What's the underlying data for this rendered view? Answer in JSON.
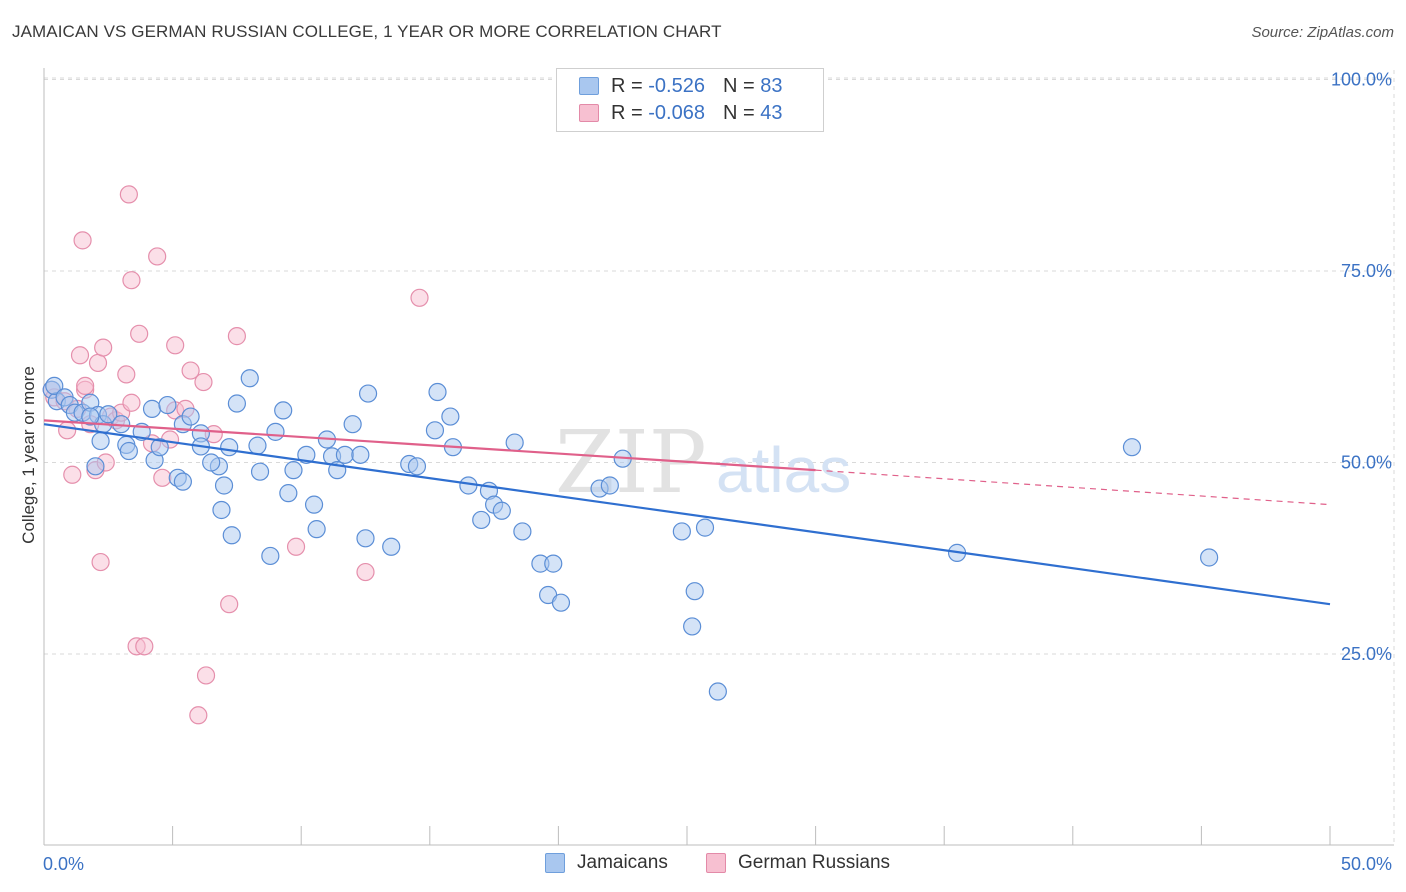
{
  "title": "JAMAICAN VS GERMAN RUSSIAN COLLEGE, 1 YEAR OR MORE CORRELATION CHART",
  "source": "Source: ZipAtlas.com",
  "watermark": {
    "zip": "ZIP",
    "atlas": "atlas"
  },
  "legend": {
    "rows": [
      {
        "r_label": "R =",
        "r_value": "-0.526",
        "n_label": "N =",
        "n_value": "83",
        "color": "#a9c7ef",
        "border": "#6f9fdc"
      },
      {
        "r_label": "R =",
        "r_value": "-0.068",
        "n_label": "N =",
        "n_value": "43",
        "color": "#f7c0d1",
        "border": "#e38aa8"
      }
    ]
  },
  "bottom_legend": {
    "jamaicans": "Jamaicans",
    "german_russians": "German Russians"
  },
  "colors": {
    "jamaican_fill": "#a9c7ef",
    "jamaican_stroke": "#5b8ed6",
    "jamaican_line": "#2f6fd0",
    "german_fill": "#f7c0d1",
    "german_stroke": "#e58fac",
    "german_line": "#e0608a",
    "grid": "#d9d9d9",
    "tick_text": "#3b72c4"
  },
  "chart_data": {
    "type": "scatter",
    "title": "JAMAICAN VS GERMAN RUSSIAN COLLEGE, 1 YEAR OR MORE CORRELATION CHART",
    "xlabel": "",
    "ylabel": "College, 1 year or more",
    "xlim": [
      0,
      50
    ],
    "ylim": [
      0,
      102
    ],
    "x_tick_labels": [
      {
        "value": 0,
        "label": "0.0%"
      },
      {
        "value": 50,
        "label": "50.0%"
      }
    ],
    "y_tick_labels": [
      {
        "value": 100,
        "label": "100.0%"
      },
      {
        "value": 75,
        "label": "75.0%"
      },
      {
        "value": 50,
        "label": "50.0%"
      },
      {
        "value": 25,
        "label": "25.0%"
      }
    ],
    "grid": true,
    "series": [
      {
        "name": "Jamaicans",
        "R": -0.526,
        "N": 83,
        "trend": {
          "x0": 0,
          "y0": 55.0,
          "x1": 50,
          "y1": 31.5
        },
        "points": [
          [
            0.3,
            59.5
          ],
          [
            0.5,
            58.0
          ],
          [
            0.4,
            60.0
          ],
          [
            0.8,
            58.5
          ],
          [
            1.0,
            57.5
          ],
          [
            1.2,
            56.5
          ],
          [
            1.5,
            56.5
          ],
          [
            1.8,
            57.8
          ],
          [
            2.1,
            56.2
          ],
          [
            2.3,
            55.0
          ],
          [
            2.5,
            56.3
          ],
          [
            1.8,
            56.0
          ],
          [
            3.0,
            55.0
          ],
          [
            3.2,
            52.3
          ],
          [
            4.2,
            57.0
          ],
          [
            4.8,
            57.5
          ],
          [
            5.4,
            55.0
          ],
          [
            5.7,
            56.0
          ],
          [
            6.1,
            53.8
          ],
          [
            2.2,
            52.8
          ],
          [
            3.3,
            51.5
          ],
          [
            4.3,
            50.3
          ],
          [
            5.2,
            48.0
          ],
          [
            5.4,
            47.5
          ],
          [
            6.1,
            52.1
          ],
          [
            6.8,
            49.5
          ],
          [
            7.2,
            52.0
          ],
          [
            7.5,
            57.7
          ],
          [
            8.3,
            52.2
          ],
          [
            9.0,
            54.0
          ],
          [
            7.0,
            47.0
          ],
          [
            6.9,
            43.8
          ],
          [
            7.3,
            40.5
          ],
          [
            8.4,
            48.8
          ],
          [
            8.8,
            37.8
          ],
          [
            9.3,
            56.8
          ],
          [
            9.5,
            46.0
          ],
          [
            9.7,
            49.0
          ],
          [
            10.2,
            51.0
          ],
          [
            10.5,
            44.5
          ],
          [
            10.6,
            41.3
          ],
          [
            11.0,
            53.0
          ],
          [
            11.2,
            50.8
          ],
          [
            11.4,
            49.0
          ],
          [
            11.7,
            51.0
          ],
          [
            12.3,
            51.0
          ],
          [
            12.5,
            40.1
          ],
          [
            12.6,
            59.0
          ],
          [
            13.5,
            39.0
          ],
          [
            14.2,
            49.8
          ],
          [
            14.5,
            49.5
          ],
          [
            15.3,
            59.2
          ],
          [
            15.8,
            56.0
          ],
          [
            15.2,
            54.2
          ],
          [
            15.9,
            52.0
          ],
          [
            17.0,
            42.5
          ],
          [
            17.3,
            46.3
          ],
          [
            17.5,
            44.5
          ],
          [
            17.8,
            43.7
          ],
          [
            18.6,
            41.0
          ],
          [
            19.3,
            36.8
          ],
          [
            19.6,
            32.7
          ],
          [
            19.8,
            36.8
          ],
          [
            18.3,
            52.6
          ],
          [
            20.1,
            31.7
          ],
          [
            21.6,
            46.6
          ],
          [
            22.5,
            50.5
          ],
          [
            24.8,
            41.0
          ],
          [
            25.2,
            28.6
          ],
          [
            25.3,
            33.2
          ],
          [
            25.7,
            41.5
          ],
          [
            26.2,
            20.1
          ],
          [
            35.5,
            38.2
          ],
          [
            42.3,
            52.0
          ],
          [
            45.3,
            37.6
          ],
          [
            2.0,
            49.5
          ],
          [
            4.5,
            52.0
          ],
          [
            6.5,
            50.0
          ],
          [
            8.0,
            61.0
          ],
          [
            12.0,
            55.0
          ],
          [
            16.5,
            47.0
          ],
          [
            22.0,
            47.0
          ],
          [
            3.8,
            54.0
          ]
        ]
      },
      {
        "name": "German Russians",
        "R": -0.068,
        "N": 43,
        "trend": {
          "x0": 0,
          "y0": 55.5,
          "x1": 30,
          "y1": 49.0
        },
        "trend_dashed": {
          "x0": 30,
          "y0": 49.0,
          "x1": 50,
          "y1": 44.5
        },
        "points": [
          [
            0.3,
            59.5
          ],
          [
            0.4,
            58.5
          ],
          [
            0.8,
            58.0
          ],
          [
            0.9,
            54.2
          ],
          [
            1.1,
            48.4
          ],
          [
            1.3,
            57.0
          ],
          [
            1.6,
            59.5
          ],
          [
            1.8,
            55.0
          ],
          [
            2.0,
            49.0
          ],
          [
            2.2,
            37.0
          ],
          [
            2.4,
            50.0
          ],
          [
            2.6,
            56.0
          ],
          [
            2.8,
            55.5
          ],
          [
            3.0,
            56.5
          ],
          [
            3.2,
            61.5
          ],
          [
            3.4,
            57.8
          ],
          [
            3.6,
            26.0
          ],
          [
            3.9,
            26.0
          ],
          [
            4.2,
            52.5
          ],
          [
            4.6,
            48.0
          ],
          [
            4.9,
            53.0
          ],
          [
            5.1,
            56.8
          ],
          [
            5.5,
            57.0
          ],
          [
            5.7,
            62.0
          ],
          [
            6.0,
            17.0
          ],
          [
            6.3,
            22.2
          ],
          [
            6.6,
            53.7
          ],
          [
            7.2,
            31.5
          ],
          [
            7.5,
            66.5
          ],
          [
            9.8,
            39.0
          ],
          [
            12.5,
            35.7
          ],
          [
            14.6,
            71.5
          ],
          [
            1.4,
            64.0
          ],
          [
            2.1,
            63.0
          ],
          [
            2.3,
            65.0
          ],
          [
            1.6,
            60.0
          ],
          [
            1.5,
            79.0
          ],
          [
            3.3,
            85.0
          ],
          [
            3.4,
            73.8
          ],
          [
            4.4,
            76.9
          ],
          [
            3.7,
            66.8
          ],
          [
            5.1,
            65.3
          ],
          [
            6.2,
            60.5
          ]
        ]
      }
    ]
  }
}
